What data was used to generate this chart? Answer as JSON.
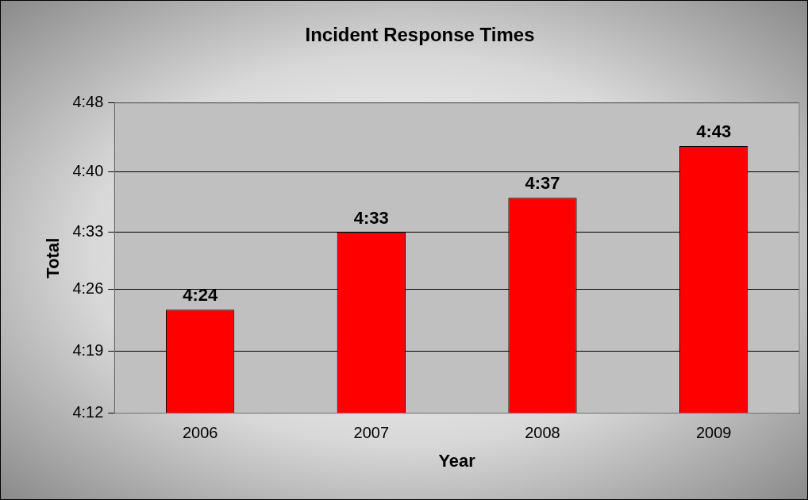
{
  "chart_data": {
    "type": "bar",
    "title": "Incident Response Times",
    "xlabel": "Year",
    "ylabel": "Total",
    "categories": [
      "2006",
      "2007",
      "2008",
      "2009"
    ],
    "values": [
      4.4,
      4.55,
      4.6167,
      4.7167
    ],
    "value_labels": [
      "4:24",
      "4:33",
      "4:37",
      "4:43"
    ],
    "color": "#ff0000",
    "ylim": [
      4.2,
      4.8
    ],
    "yticks": [
      {
        "value": 4.2,
        "label": "4:12"
      },
      {
        "value": 4.32,
        "label": "4:19"
      },
      {
        "value": 4.44,
        "label": "4:26"
      },
      {
        "value": 4.55,
        "label": "4:33"
      },
      {
        "value": 4.6667,
        "label": "4:40"
      },
      {
        "value": 4.8,
        "label": "4:48"
      }
    ],
    "grid": "y",
    "legend": false
  }
}
